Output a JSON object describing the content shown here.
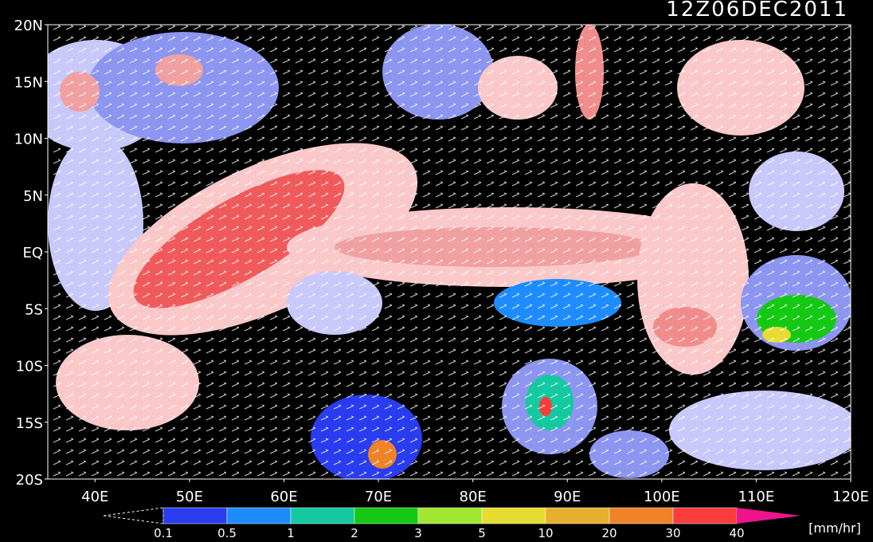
{
  "title": "12Z06DEC2011",
  "lat_labels": [
    "20N",
    "15N",
    "10N",
    "5N",
    "EQ",
    "5S",
    "10S",
    "15S",
    "20S"
  ],
  "lon_labels": [
    "40E",
    "50E",
    "60E",
    "70E",
    "80E",
    "90E",
    "100E",
    "110E",
    "120E"
  ],
  "colorbar": {
    "labels": [
      "0.1",
      "0.5",
      "1",
      "2",
      "3",
      "5",
      "10",
      "20",
      "30",
      "40"
    ],
    "colors": [
      "#2a3cf0",
      "#1e8cff",
      "#14c8a0",
      "#14c814",
      "#a0e632",
      "#e6dc32",
      "#e6af2d",
      "#f08228",
      "#fa3c3c",
      "#f0148c"
    ],
    "unit": "[mm/hr]"
  }
}
